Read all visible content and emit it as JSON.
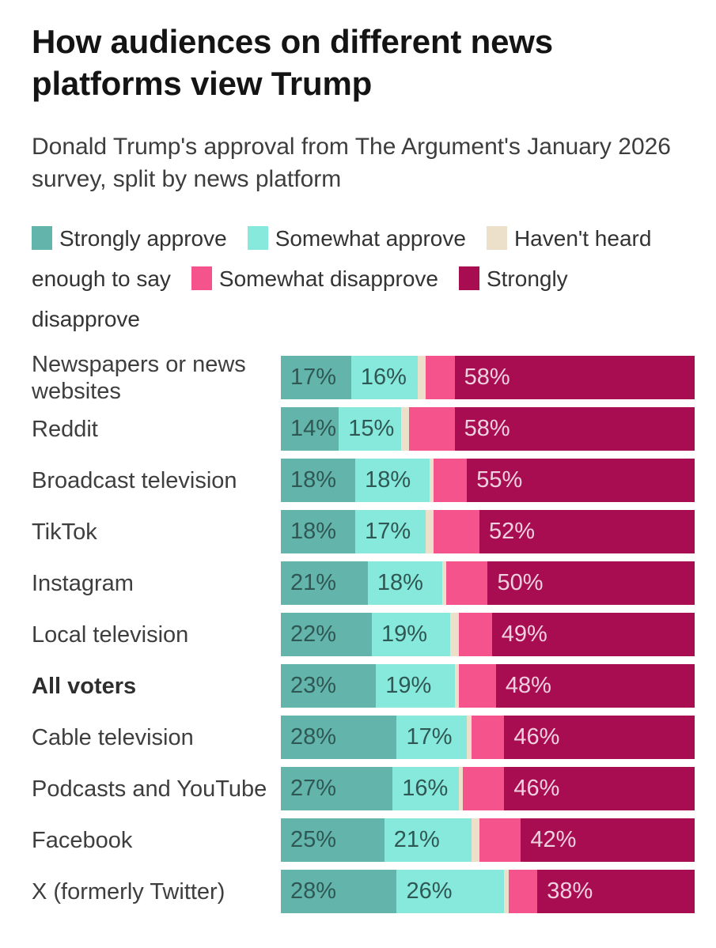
{
  "header": {
    "title": "How audiences on different news platforms view Trump",
    "subtitle": "Donald Trump's approval from The Argument's January 2026 survey, split by news platform"
  },
  "legend": {
    "lines": [
      [
        {
          "color_key": "strongly_approve",
          "text": "Strongly approve"
        },
        {
          "color_key": "somewhat_approve",
          "text": "Somewhat approve"
        },
        {
          "color_key": "havent_heard",
          "text": "Haven't heard"
        }
      ],
      [
        {
          "color_key": null,
          "text": "enough to say"
        },
        {
          "color_key": "somewhat_disapprove",
          "text": "Somewhat disapprove"
        },
        {
          "color_key": "strongly_disapprove",
          "text": "Strongly"
        }
      ],
      [
        {
          "color_key": null,
          "text": "disapprove"
        }
      ]
    ]
  },
  "chart_data": {
    "type": "bar",
    "variant": "horizontal-100-percent-stacked",
    "title": "How audiences on different news platforms view Trump",
    "subtitle": "Donald Trump's approval from The Argument's January 2026 survey, split by news platform",
    "legend_position": "top",
    "axis": "none, each bar spans 0-100%",
    "series_names": [
      "Strongly approve",
      "Somewhat approve",
      "Haven't heard enough to say",
      "Somewhat disapprove",
      "Strongly disapprove"
    ],
    "segment_keys": [
      "strongly_approve",
      "somewhat_approve",
      "havent_heard",
      "somewhat_disapprove",
      "strongly_disapprove"
    ],
    "colors": {
      "strongly_approve": "#63b5ac",
      "somewhat_approve": "#87e8dc",
      "havent_heard": "#ece0cb",
      "somewhat_disapprove": "#f4538b",
      "strongly_disapprove": "#a80d52"
    },
    "note": "values for 'Haven't heard enough to say' and 'Somewhat disapprove' are unlabeled in the chart and estimated from segment widths",
    "categories": [
      "Newspapers or news websites",
      "Reddit",
      "Broadcast television",
      "TikTok",
      "Instagram",
      "Local television",
      "All voters",
      "Cable television",
      "Podcasts and YouTube",
      "Facebook",
      "X (formerly Twitter)"
    ],
    "rows": [
      {
        "category": "Newspapers or news websites",
        "bold": false,
        "values": [
          17,
          16,
          2,
          7,
          58
        ],
        "labels": [
          "17%",
          "16%",
          "",
          "",
          "58%"
        ]
      },
      {
        "category": "Reddit",
        "bold": false,
        "values": [
          14,
          15,
          2,
          11,
          58
        ],
        "labels": [
          "14%",
          "15%",
          "",
          "",
          "58%"
        ]
      },
      {
        "category": "Broadcast television",
        "bold": false,
        "values": [
          18,
          18,
          1,
          8,
          55
        ],
        "labels": [
          "18%",
          "18%",
          "",
          "",
          "55%"
        ]
      },
      {
        "category": "TikTok",
        "bold": false,
        "values": [
          18,
          17,
          2,
          11,
          52
        ],
        "labels": [
          "18%",
          "17%",
          "",
          "",
          "52%"
        ]
      },
      {
        "category": "Instagram",
        "bold": false,
        "values": [
          21,
          18,
          1,
          10,
          50
        ],
        "labels": [
          "21%",
          "18%",
          "",
          "",
          "50%"
        ]
      },
      {
        "category": "Local television",
        "bold": false,
        "values": [
          22,
          19,
          2,
          8,
          49
        ],
        "labels": [
          "22%",
          "19%",
          "",
          "",
          "49%"
        ]
      },
      {
        "category": "All voters",
        "bold": true,
        "values": [
          23,
          19,
          1,
          9,
          48
        ],
        "labels": [
          "23%",
          "19%",
          "",
          "",
          "48%"
        ]
      },
      {
        "category": "Cable television",
        "bold": false,
        "values": [
          28,
          17,
          1,
          8,
          46
        ],
        "labels": [
          "28%",
          "17%",
          "",
          "",
          "46%"
        ]
      },
      {
        "category": "Podcasts and YouTube",
        "bold": false,
        "values": [
          27,
          16,
          1,
          10,
          46
        ],
        "labels": [
          "27%",
          "16%",
          "",
          "",
          "46%"
        ]
      },
      {
        "category": "Facebook",
        "bold": false,
        "values": [
          25,
          21,
          2,
          10,
          42
        ],
        "labels": [
          "25%",
          "21%",
          "",
          "",
          "42%"
        ]
      },
      {
        "category": "X (formerly Twitter)",
        "bold": false,
        "values": [
          28,
          26,
          1,
          7,
          38
        ],
        "labels": [
          "28%",
          "26%",
          "",
          "",
          "38%"
        ]
      }
    ]
  }
}
